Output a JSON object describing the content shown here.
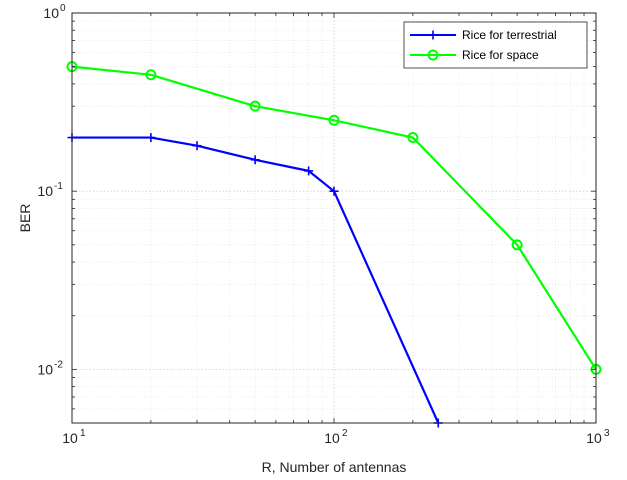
{
  "chart_data": {
    "type": "line",
    "title": "",
    "xlabel": "R, Number of antennas",
    "ylabel": "BER",
    "xscale": "log",
    "yscale": "log",
    "xlim": [
      10,
      1000
    ],
    "ylim": [
      0.005,
      1
    ],
    "grid": "on (major and minor, dotted)",
    "legend_position": "top-right",
    "x_ticks": [
      {
        "base": "10",
        "exp": "1"
      },
      {
        "base": "10",
        "exp": "2"
      },
      {
        "base": "10",
        "exp": "3"
      }
    ],
    "y_ticks": [
      {
        "base": "10",
        "exp": "-2"
      },
      {
        "base": "10",
        "exp": "-1"
      },
      {
        "base": "10",
        "exp": "0"
      }
    ],
    "series": [
      {
        "name": "Rice for terrestrial",
        "color": "#0000ff",
        "marker": "plus",
        "x": [
          10,
          20,
          30,
          50,
          80,
          100,
          250
        ],
        "y": [
          0.2,
          0.2,
          0.18,
          0.15,
          0.13,
          0.1,
          0.005
        ]
      },
      {
        "name": "Rice for space",
        "color": "#00ff00",
        "marker": "circle",
        "x": [
          10,
          20,
          50,
          100,
          200,
          500,
          1000
        ],
        "y": [
          0.5,
          0.45,
          0.3,
          0.25,
          0.2,
          0.05,
          0.01
        ]
      }
    ]
  }
}
